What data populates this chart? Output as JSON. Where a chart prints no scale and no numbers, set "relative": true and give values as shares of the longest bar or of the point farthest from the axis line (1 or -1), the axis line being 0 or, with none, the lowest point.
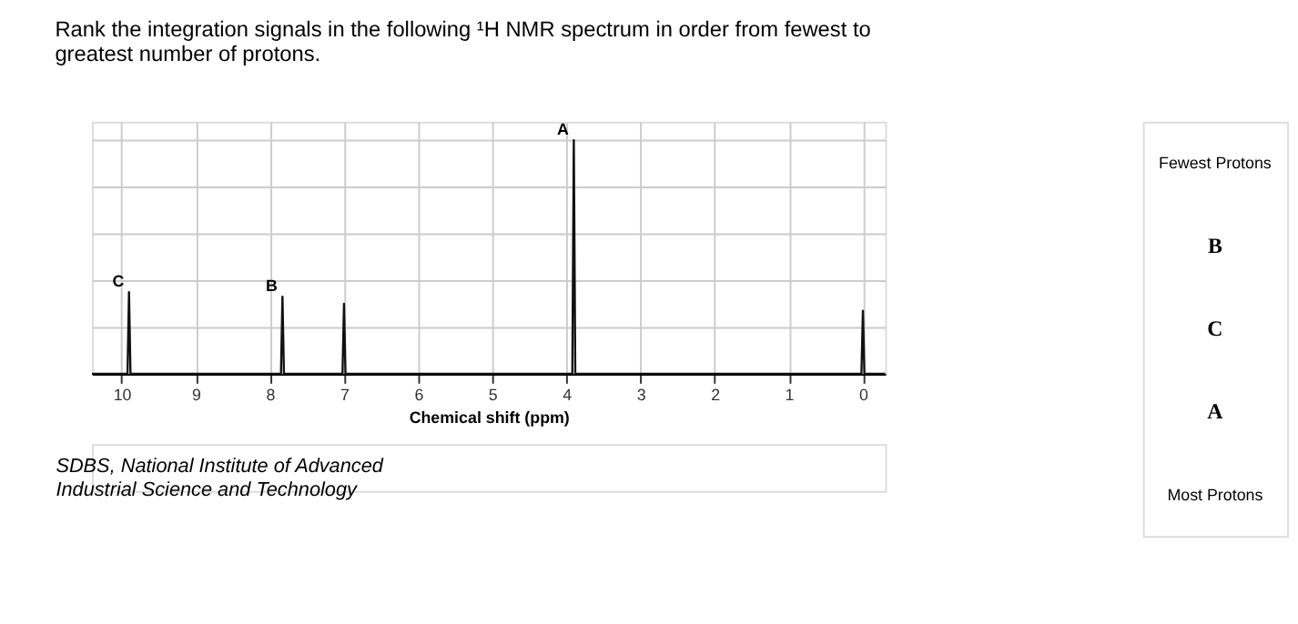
{
  "chart_data": {
    "type": "line",
    "title": "Rank the integration signals in the following ¹H NMR spectrum  in order from fewest to greatest number of protons.",
    "xlabel": "Chemical shift (ppm)",
    "relative": true,
    "x": [
      10.4,
      9.92,
      9.9,
      9.88,
      7.85,
      7.83,
      7.81,
      7.02,
      7.0,
      6.98,
      3.92,
      3.9,
      3.88,
      0.02,
      0.0,
      -0.02,
      -0.3
    ],
    "series": [
      {
        "color": "#111111",
        "values": [
          0,
          0,
          0.35,
          0,
          0,
          0.33,
          0,
          0,
          0.3,
          0,
          0,
          1.0,
          0,
          0,
          0.27,
          0,
          0
        ]
      }
    ],
    "xlim": [
      10.4,
      -0.3
    ],
    "xticks": [
      10,
      9,
      8,
      7,
      6,
      5,
      4,
      3,
      2,
      1,
      0
    ],
    "grid": true,
    "annotations": [
      {
        "text": "A",
        "x": 3.9,
        "y": 1.0
      },
      {
        "text": "B",
        "x": 7.83,
        "y": 0.33
      },
      {
        "text": "C",
        "x": 9.9,
        "y": 0.35
      },
      "SDBS, National Institute of Advanced Industrial Science and Technology",
      "Fewest Protons",
      "B",
      "C",
      "A",
      "Most Protons"
    ]
  }
}
